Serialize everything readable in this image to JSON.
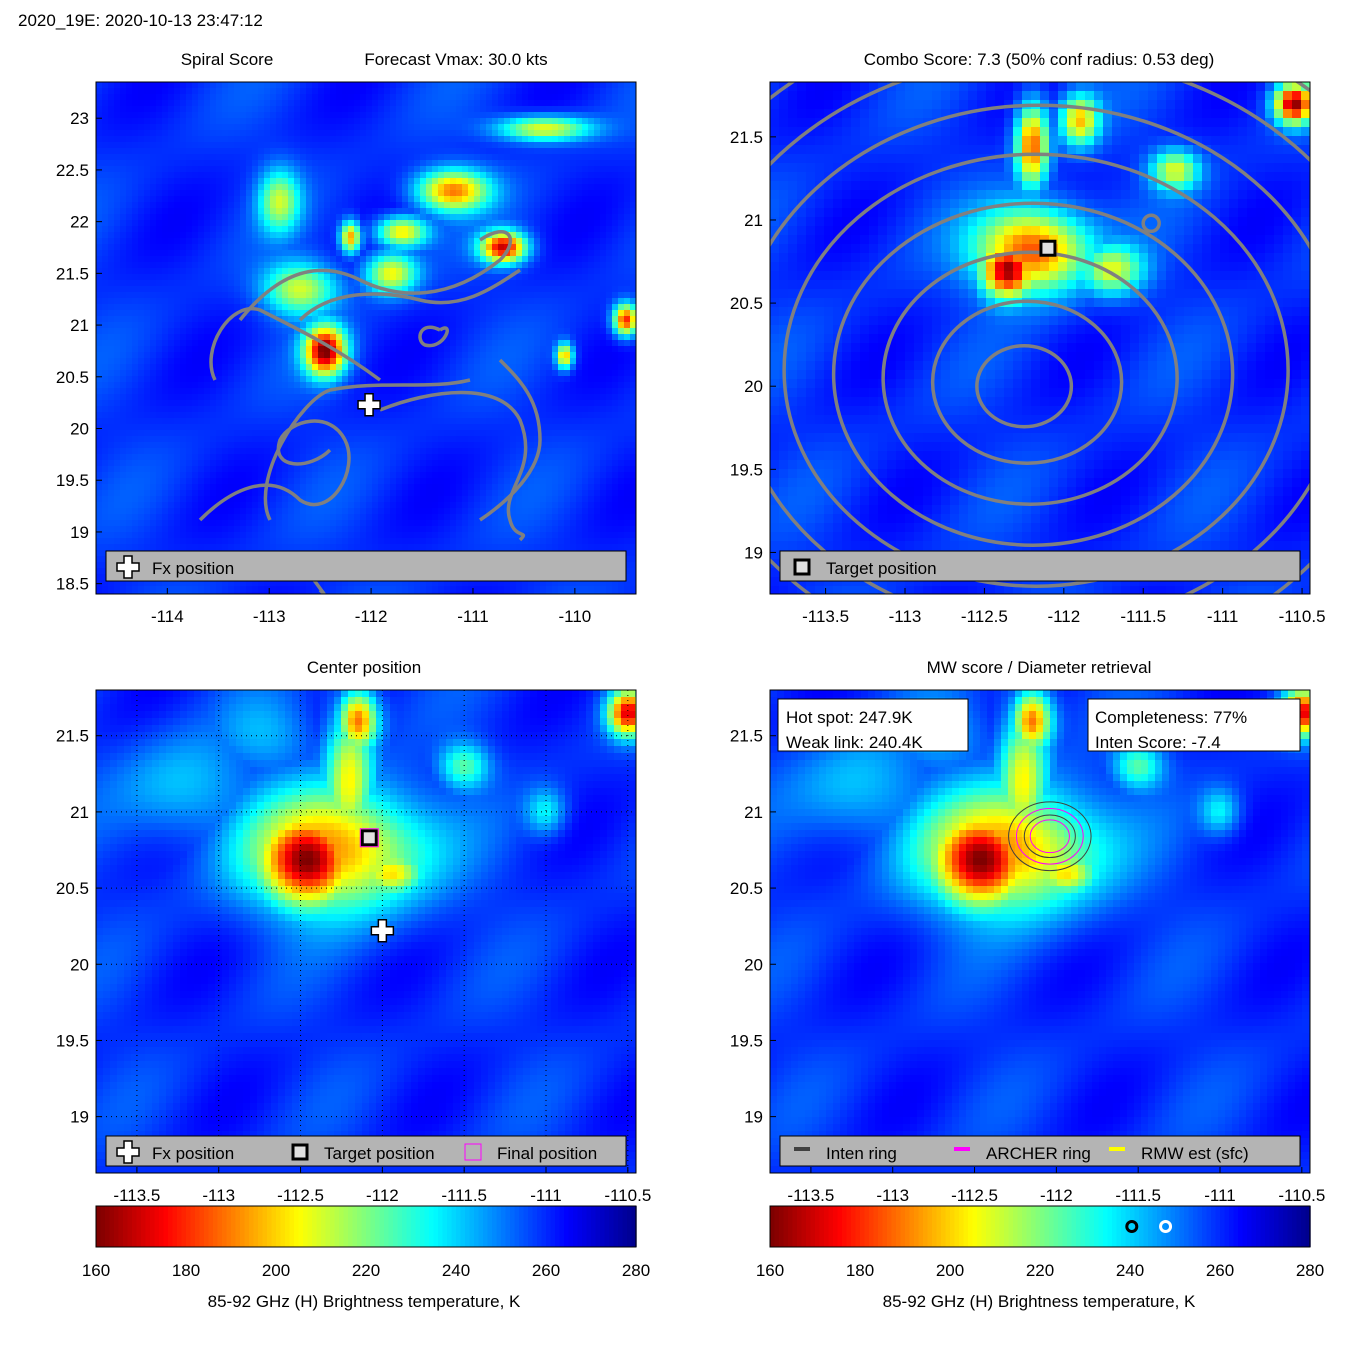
{
  "figure": {
    "header": "2020_19E: 2020-10-13 23:47:12",
    "colormap": [
      "#7f0000",
      "#ff0000",
      "#ff7f00",
      "#ffff00",
      "#7fff7f",
      "#00ffff",
      "#007fff",
      "#0000ff",
      "#00008f"
    ]
  },
  "chart_data": [
    {
      "id": "spiral",
      "type": "heatmap",
      "title": "Spiral Score",
      "title_right": "Forecast Vmax: 30.0 kts",
      "xlim": [
        -114.7,
        -109.4
      ],
      "ylim": [
        18.4,
        23.35
      ],
      "xticks": [
        -114,
        -113,
        -112,
        -111,
        -110
      ],
      "yticks": [
        18.5,
        19,
        19.5,
        20,
        20.5,
        21,
        21.5,
        22,
        22.5,
        23
      ],
      "grid": false,
      "legend_location": "bottom",
      "legend": [
        {
          "symbol": "fx",
          "label": "Fx position"
        }
      ],
      "markers": {
        "fx": [
          -112.02,
          20.23
        ]
      },
      "hot_spots": [
        {
          "x": -112.45,
          "y": 20.75,
          "value": 0.98,
          "rx": 0.2,
          "ry": 0.24
        },
        {
          "x": -110.7,
          "y": 21.75,
          "value": 0.9,
          "rx": 0.22,
          "ry": 0.15
        },
        {
          "x": -110.1,
          "y": 20.7,
          "value": 0.65,
          "rx": 0.08,
          "ry": 0.12
        },
        {
          "x": -109.5,
          "y": 21.05,
          "value": 0.85,
          "rx": 0.12,
          "ry": 0.15
        },
        {
          "x": -111.8,
          "y": 21.5,
          "value": 0.55,
          "rx": 0.25,
          "ry": 0.2
        },
        {
          "x": -112.2,
          "y": 21.85,
          "value": 0.7,
          "rx": 0.1,
          "ry": 0.15
        },
        {
          "x": -111.2,
          "y": 22.3,
          "value": 0.7,
          "rx": 0.35,
          "ry": 0.2
        },
        {
          "x": -110.3,
          "y": 22.9,
          "value": 0.55,
          "rx": 0.45,
          "ry": 0.12
        },
        {
          "x": -111.7,
          "y": 21.9,
          "value": 0.6,
          "rx": 0.25,
          "ry": 0.15
        },
        {
          "x": -112.7,
          "y": 21.35,
          "value": 0.5,
          "rx": 0.35,
          "ry": 0.25
        },
        {
          "x": -112.9,
          "y": 22.2,
          "value": 0.45,
          "rx": 0.2,
          "ry": 0.3
        }
      ]
    },
    {
      "id": "combo",
      "type": "heatmap",
      "title": "Combo Score: 7.3  (50% conf radius: 0.53 deg)",
      "xlim": [
        -113.85,
        -110.45
      ],
      "ylim": [
        18.75,
        21.83
      ],
      "xticks": [
        -113.5,
        -113,
        -112.5,
        -112,
        -111.5,
        -111,
        -110.5
      ],
      "yticks": [
        19,
        19.5,
        20,
        20.5,
        21,
        21.5
      ],
      "grid": false,
      "legend_location": "bottom",
      "legend": [
        {
          "symbol": "target",
          "label": "Target position"
        }
      ],
      "markers": {
        "target": [
          -112.1,
          20.83
        ]
      },
      "contour_center": [
        -112.25,
        20.0
      ],
      "hot_spots": [
        {
          "x": -112.35,
          "y": 20.7,
          "value": 1.0,
          "rx": 0.17,
          "ry": 0.17
        },
        {
          "x": -112.2,
          "y": 20.82,
          "value": 0.8,
          "rx": 0.35,
          "ry": 0.25
        },
        {
          "x": -112.2,
          "y": 21.45,
          "value": 0.75,
          "rx": 0.1,
          "ry": 0.25
        },
        {
          "x": -111.9,
          "y": 21.6,
          "value": 0.6,
          "rx": 0.12,
          "ry": 0.15
        },
        {
          "x": -110.55,
          "y": 21.7,
          "value": 0.95,
          "rx": 0.12,
          "ry": 0.12
        },
        {
          "x": -111.3,
          "y": 21.3,
          "value": 0.5,
          "rx": 0.15,
          "ry": 0.12
        },
        {
          "x": -111.7,
          "y": 20.7,
          "value": 0.5,
          "rx": 0.2,
          "ry": 0.15
        }
      ]
    },
    {
      "id": "center",
      "type": "heatmap",
      "title": "Center position",
      "xlim": [
        -113.75,
        -110.45
      ],
      "ylim": [
        18.63,
        21.8
      ],
      "xticks": [
        -113.5,
        -113,
        -112.5,
        -112,
        -111.5,
        -111,
        -110.5
      ],
      "yticks": [
        19,
        19.5,
        20,
        20.5,
        21,
        21.5
      ],
      "grid": true,
      "legend_location": "bottom",
      "legend": [
        {
          "symbol": "fx",
          "label": "Fx position"
        },
        {
          "symbol": "target",
          "label": "Target position"
        },
        {
          "symbol": "final",
          "label": "Final position"
        }
      ],
      "markers": {
        "fx": [
          -112.0,
          20.22
        ],
        "target": [
          -112.08,
          20.83
        ],
        "final": [
          -112.08,
          20.83
        ]
      },
      "colorbar": {
        "range": [
          160,
          280
        ],
        "ticks": [
          160,
          180,
          200,
          220,
          240,
          260,
          280
        ],
        "label": "85-92 GHz (H) Brightness temperature, K"
      },
      "hot_spots": [
        {
          "x": -112.45,
          "y": 20.68,
          "value": 1.0,
          "rx": 0.3,
          "ry": 0.3
        },
        {
          "x": -112.3,
          "y": 20.75,
          "value": 0.7,
          "rx": 0.55,
          "ry": 0.4
        },
        {
          "x": -112.2,
          "y": 21.2,
          "value": 0.55,
          "rx": 0.15,
          "ry": 0.5
        },
        {
          "x": -112.15,
          "y": 21.6,
          "value": 0.75,
          "rx": 0.12,
          "ry": 0.2
        },
        {
          "x": -111.95,
          "y": 20.6,
          "value": 0.6,
          "rx": 0.2,
          "ry": 0.15
        },
        {
          "x": -110.5,
          "y": 21.65,
          "value": 0.85,
          "rx": 0.12,
          "ry": 0.15
        },
        {
          "x": -111.5,
          "y": 21.3,
          "value": 0.35,
          "rx": 0.15,
          "ry": 0.15
        },
        {
          "x": -111.0,
          "y": 21.0,
          "value": 0.25,
          "rx": 0.12,
          "ry": 0.15
        },
        {
          "x": -113.2,
          "y": 21.15,
          "value": 0.2,
          "rx": 0.4,
          "ry": 0.35
        },
        {
          "x": -112.7,
          "y": 21.5,
          "value": 0.15,
          "rx": 0.3,
          "ry": 0.25
        }
      ]
    },
    {
      "id": "mw",
      "type": "heatmap",
      "title": "MW score / Diameter retrieval",
      "xlim": [
        -113.75,
        -110.45
      ],
      "ylim": [
        18.63,
        21.8
      ],
      "xticks": [
        -113.5,
        -113,
        -112.5,
        -112,
        -111.5,
        -111,
        -110.5
      ],
      "yticks": [
        19,
        19.5,
        20,
        20.5,
        21,
        21.5
      ],
      "grid": false,
      "legend_location": "bottom",
      "legend": [
        {
          "symbol": "inten-ring",
          "label": "Inten ring"
        },
        {
          "symbol": "archer-ring",
          "label": "ARCHER ring"
        },
        {
          "symbol": "rmw-est",
          "label": "RMW est (sfc)"
        }
      ],
      "info_left": [
        "Hot spot: 247.9K",
        "Weak link: 240.4K"
      ],
      "info_right": [
        "Completeness: 77%",
        "Inten Score: -7.4"
      ],
      "rings": {
        "center": [
          -112.04,
          20.84
        ],
        "radii_deg": [
          0.1,
          0.13,
          0.17,
          0.21
        ]
      },
      "colorbar": {
        "range": [
          160,
          280
        ],
        "ticks": [
          160,
          180,
          200,
          220,
          240,
          260,
          280
        ],
        "label": "85-92 GHz (H) Brightness temperature, K",
        "markers_K": [
          240.4,
          247.9
        ]
      },
      "hot_spots": [
        {
          "x": -112.45,
          "y": 20.68,
          "value": 1.0,
          "rx": 0.3,
          "ry": 0.3
        },
        {
          "x": -112.3,
          "y": 20.75,
          "value": 0.7,
          "rx": 0.55,
          "ry": 0.4
        },
        {
          "x": -112.2,
          "y": 21.2,
          "value": 0.55,
          "rx": 0.15,
          "ry": 0.5
        },
        {
          "x": -112.15,
          "y": 21.6,
          "value": 0.75,
          "rx": 0.12,
          "ry": 0.2
        },
        {
          "x": -111.95,
          "y": 20.6,
          "value": 0.6,
          "rx": 0.2,
          "ry": 0.15
        },
        {
          "x": -110.5,
          "y": 21.65,
          "value": 0.85,
          "rx": 0.12,
          "ry": 0.15
        },
        {
          "x": -111.5,
          "y": 21.3,
          "value": 0.35,
          "rx": 0.15,
          "ry": 0.15
        },
        {
          "x": -111.0,
          "y": 21.0,
          "value": 0.25,
          "rx": 0.12,
          "ry": 0.15
        },
        {
          "x": -113.2,
          "y": 21.15,
          "value": 0.2,
          "rx": 0.4,
          "ry": 0.35
        },
        {
          "x": -112.7,
          "y": 21.5,
          "value": 0.15,
          "rx": 0.3,
          "ry": 0.25
        }
      ]
    }
  ]
}
